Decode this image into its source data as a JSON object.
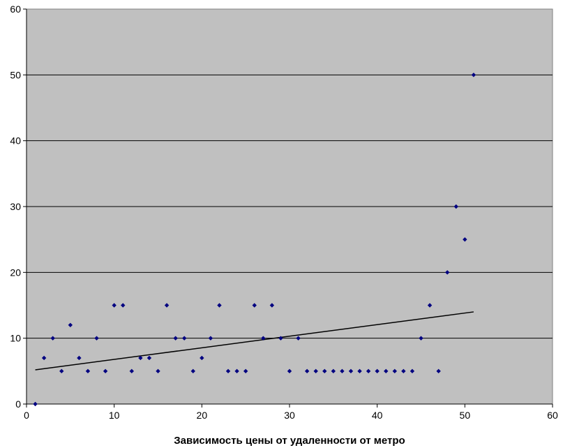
{
  "chart_data": {
    "type": "scatter",
    "title": "",
    "xlabel": "Зависимость цены от удаленности от метро",
    "ylabel": "",
    "xlim": [
      0,
      60
    ],
    "ylim": [
      0,
      60
    ],
    "xticks": [
      0,
      10,
      20,
      30,
      40,
      50,
      60
    ],
    "yticks": [
      0,
      10,
      20,
      30,
      40,
      50,
      60
    ],
    "grid": "horizontal",
    "legend": "none",
    "plot_background": "#c0c0c0",
    "marker_color": "#000080",
    "series": [
      {
        "name": "",
        "x": [
          1,
          2,
          3,
          4,
          5,
          6,
          7,
          8,
          9,
          10,
          11,
          12,
          13,
          14,
          15,
          16,
          17,
          18,
          19,
          20,
          21,
          22,
          23,
          24,
          25,
          26,
          27,
          28,
          29,
          30,
          31,
          32,
          33,
          34,
          35,
          36,
          37,
          38,
          39,
          40,
          41,
          42,
          43,
          44,
          45,
          46,
          47,
          48,
          49,
          50,
          51
        ],
        "y": [
          0,
          7,
          10,
          5,
          12,
          7,
          5,
          10,
          5,
          15,
          15,
          5,
          7,
          7,
          5,
          15,
          10,
          10,
          5,
          7,
          10,
          15,
          5,
          5,
          5,
          15,
          10,
          15,
          10,
          5,
          10,
          5,
          5,
          5,
          5,
          5,
          5,
          5,
          5,
          5,
          5,
          5,
          5,
          5,
          10,
          15,
          5,
          20,
          30,
          25,
          50
        ]
      }
    ],
    "trendline": {
      "type": "linear",
      "x": [
        1,
        51
      ],
      "y": [
        5.2,
        14.0
      ],
      "color": "#000000"
    }
  }
}
